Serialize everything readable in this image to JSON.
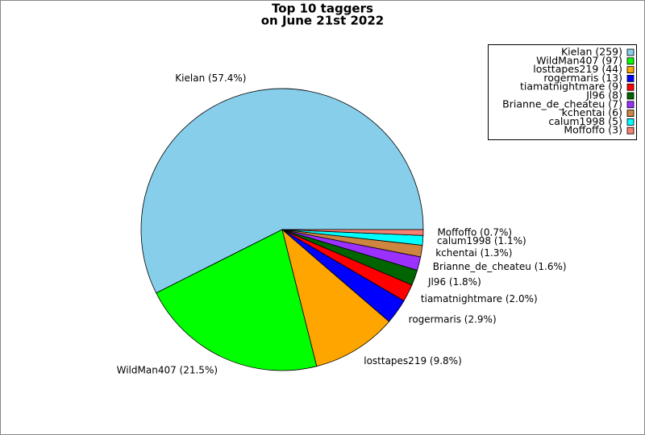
{
  "chart_data": {
    "type": "pie",
    "title": "Top 10 taggers",
    "subtitle": "on June 21st 2022",
    "categories": [
      "Kielan",
      "WildMan407",
      "losttapes219",
      "rogermaris",
      "tiamatnightmare",
      "Jl96",
      "Brianne_de_cheateu",
      "kchentai",
      "calum1998",
      "Moffoffo"
    ],
    "values": [
      259,
      97,
      44,
      13,
      9,
      8,
      7,
      6,
      5,
      3
    ],
    "slice_labels": [
      "Kielan (57.4%)",
      "WildMan407 (21.5%)",
      "losttapes219 (9.8%)",
      "rogermaris (2.9%)",
      "tiamatnightmare (2.0%)",
      "Jl96 (1.8%)",
      "Brianne_de_cheateu (1.6%)",
      "kchentai (1.3%)",
      "calum1998 (1.1%)",
      "Moffoffo (0.7%)"
    ],
    "legend_labels": [
      "Kielan (259)",
      "WildMan407 (97)",
      "losttapes219 (44)",
      "rogermaris (13)",
      "tiamatnightmare (9)",
      "Jl96 (8)",
      "Brianne_de_cheateu (7)",
      "kchentai (6)",
      "calum1998 (5)",
      "Moffoffo (3)"
    ],
    "colors": [
      "#87ceeb",
      "#00ff00",
      "#ffa500",
      "#0000ff",
      "#ff0000",
      "#006400",
      "#9b30ff",
      "#cd853f",
      "#00ffff",
      "#fa8072"
    ],
    "legend_position": "upper right"
  }
}
